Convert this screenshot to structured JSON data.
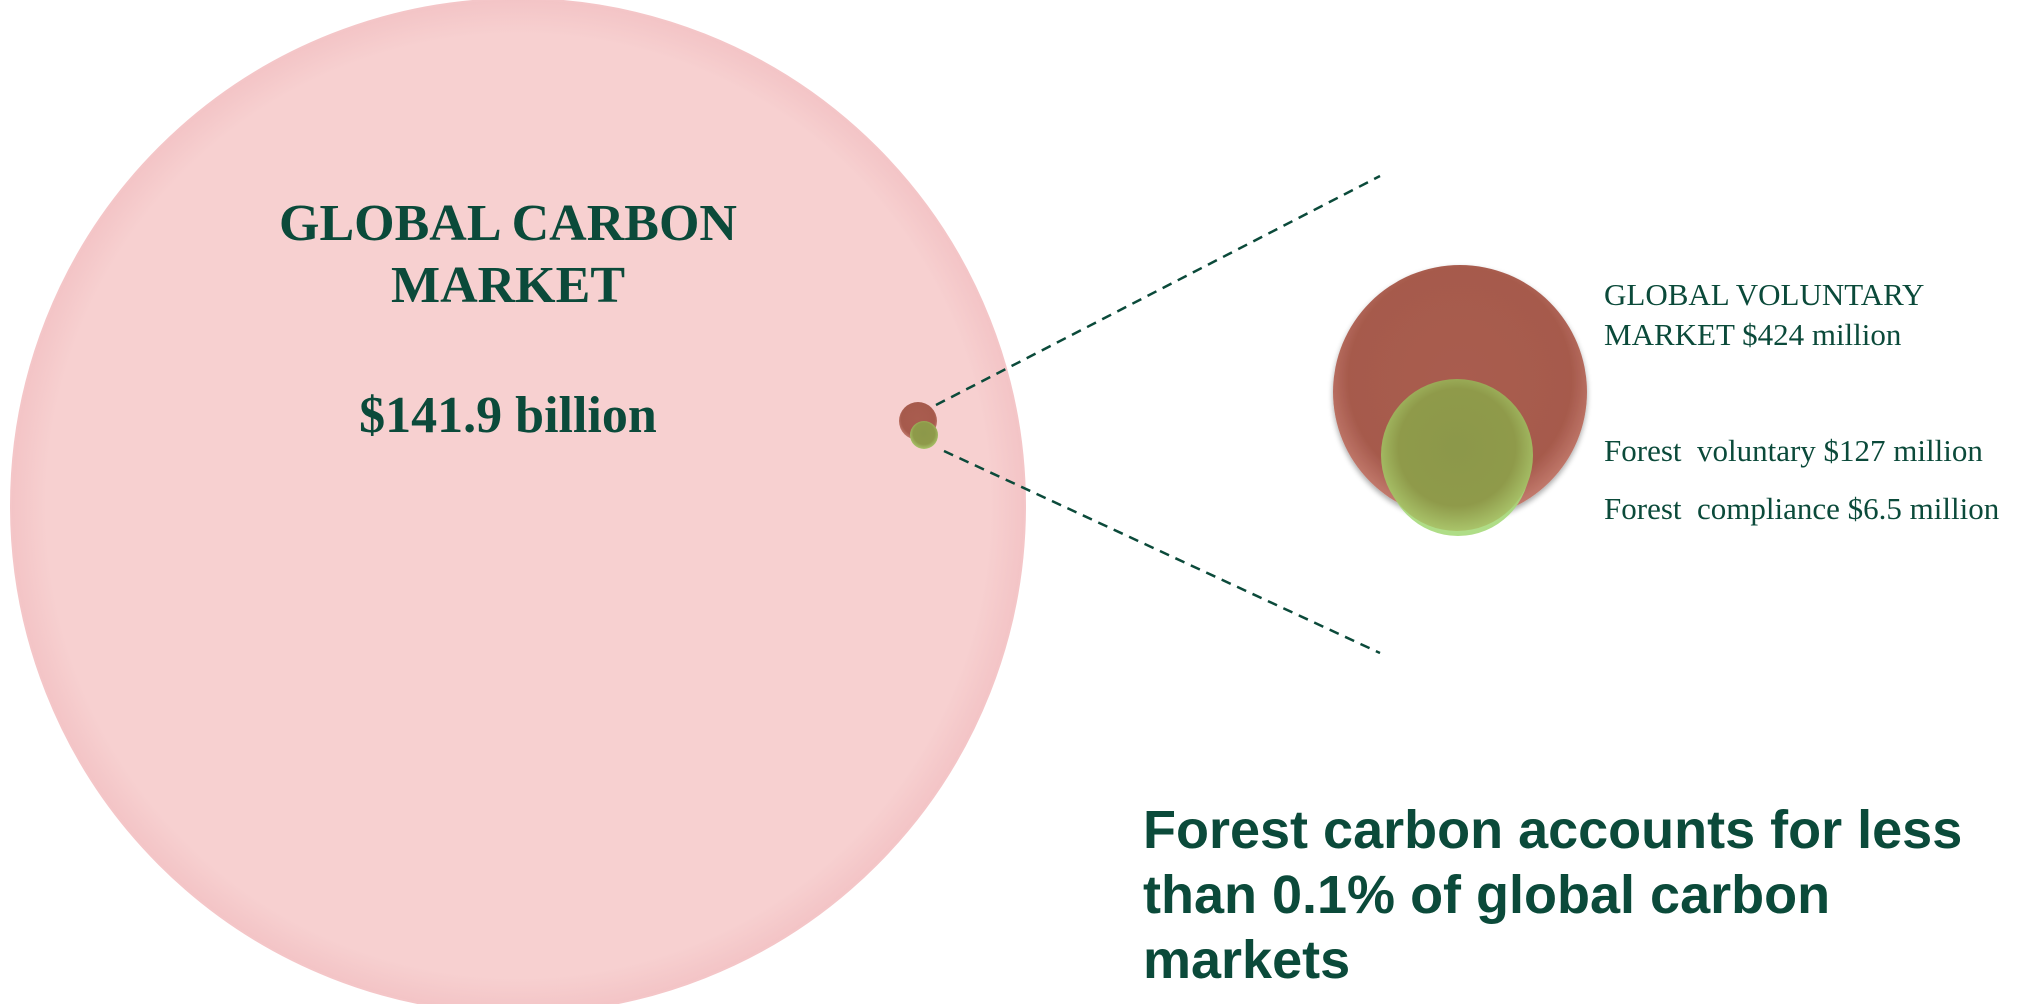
{
  "colors": {
    "text": "#0b4a3a",
    "global_circle": "#f7d0d0",
    "voluntary_circle": "#a65a4c",
    "forest_circle": "#8f9a4a",
    "compliance_circle": "#a6d97a"
  },
  "global_market": {
    "title_line1": "GLOBAL CARBON",
    "title_line2": "MARKET",
    "value": "$141.9 billion"
  },
  "voluntary_market": {
    "label_line1": "GLOBAL VOLUNTARY",
    "label_line2": "MARKET $424 million"
  },
  "forest_voluntary": {
    "label": "Forest  voluntary $127 million"
  },
  "forest_compliance": {
    "label": "Forest  compliance $6.5 million"
  },
  "conclusion": {
    "line1": "Forest carbon accounts for less",
    "line2": "than 0.1% of global carbon",
    "line3": "markets"
  }
}
